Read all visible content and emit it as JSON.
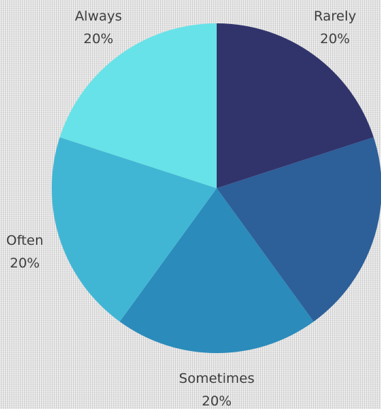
{
  "chart_data": {
    "type": "pie",
    "title": "",
    "slices": [
      {
        "label": "Rarely",
        "value": 20,
        "percent_label": "20%",
        "color": "#31346b"
      },
      {
        "label": "",
        "value": 20,
        "percent_label": "",
        "color": "#2d5f99"
      },
      {
        "label": "Sometimes",
        "value": 20,
        "percent_label": "20%",
        "color": "#2b8bbb"
      },
      {
        "label": "Often",
        "value": 20,
        "percent_label": "20%",
        "color": "#41b6d4"
      },
      {
        "label": "Always",
        "value": 20,
        "percent_label": "20%",
        "color": "#67e2e8"
      }
    ],
    "start_angle_deg": 0,
    "direction": "clockwise",
    "legend": "none",
    "labels": "outside"
  }
}
